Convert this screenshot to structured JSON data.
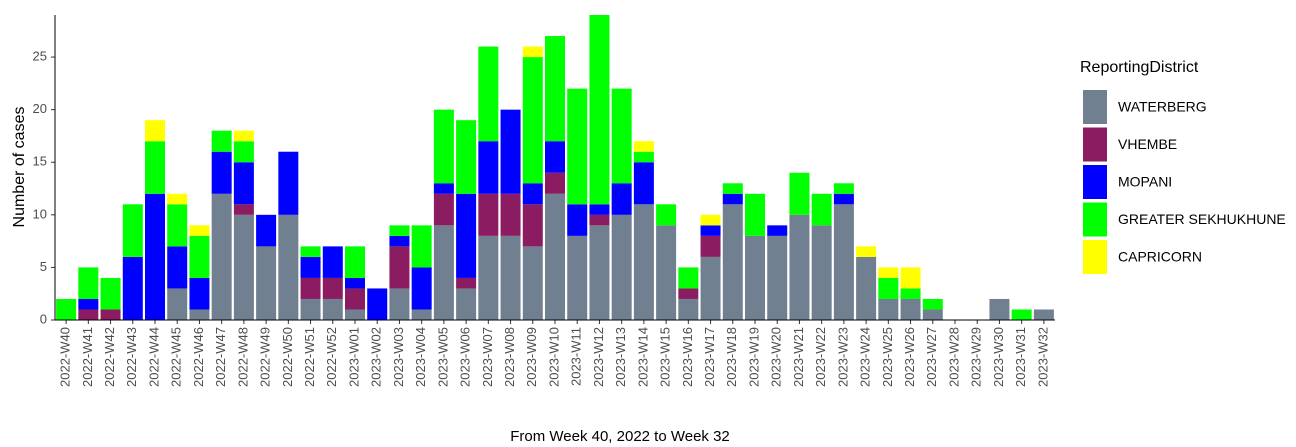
{
  "chart_data": {
    "type": "stacked_bar",
    "xlabel": "From Week 40, 2022 to Week 32",
    "ylabel": "Number of cases",
    "legend_title": "ReportingDistrict",
    "legend": "right",
    "categories": [
      "2022-W40",
      "2022-W41",
      "2022-W42",
      "2022-W43",
      "2022-W44",
      "2022-W45",
      "2022-W46",
      "2022-W47",
      "2022-W48",
      "2022-W49",
      "2022-W50",
      "2022-W51",
      "2022-W52",
      "2023-W01",
      "2023-W02",
      "2023-W03",
      "2023-W04",
      "2023-W05",
      "2023-W06",
      "2023-W07",
      "2023-W08",
      "2023-W09",
      "2023-W10",
      "2023-W11",
      "2023-W12",
      "2023-W13",
      "2023-W14",
      "2023-W15",
      "2023-W16",
      "2023-W17",
      "2023-W18",
      "2023-W19",
      "2023-W20",
      "2023-W21",
      "2023-W22",
      "2023-W23",
      "2023-W24",
      "2023-W25",
      "2023-W26",
      "2023-W27",
      "2023-W28",
      "2023-W29",
      "2023-W30",
      "2023-W31",
      "2023-W32"
    ],
    "series": [
      {
        "name": "WATERBERG",
        "color": "#708090",
        "values": [
          0,
          0,
          0,
          0,
          0,
          3,
          1,
          12,
          10,
          7,
          10,
          2,
          2,
          1,
          0,
          3,
          1,
          9,
          3,
          8,
          8,
          7,
          12,
          8,
          9,
          10,
          11,
          9,
          2,
          6,
          11,
          8,
          8,
          10,
          9,
          11,
          6,
          2,
          2,
          1,
          0,
          0,
          2,
          0,
          1
        ]
      },
      {
        "name": "VHEMBE",
        "color": "#8b1c62",
        "values": [
          0,
          1,
          1,
          0,
          0,
          0,
          0,
          0,
          1,
          0,
          0,
          2,
          2,
          2,
          0,
          4,
          0,
          3,
          1,
          4,
          4,
          4,
          2,
          0,
          1,
          0,
          0,
          0,
          1,
          2,
          0,
          0,
          0,
          0,
          0,
          0,
          0,
          0,
          0,
          0,
          0,
          0,
          0,
          0,
          0
        ]
      },
      {
        "name": "MOPANI",
        "color": "#0000ff",
        "values": [
          0,
          1,
          0,
          6,
          12,
          4,
          3,
          4,
          4,
          3,
          6,
          2,
          3,
          1,
          3,
          1,
          4,
          1,
          8,
          5,
          8,
          2,
          3,
          3,
          1,
          3,
          4,
          0,
          0,
          1,
          1,
          0,
          1,
          0,
          0,
          1,
          0,
          0,
          0,
          0,
          0,
          0,
          0,
          0,
          0
        ]
      },
      {
        "name": "GREATER SEKHUKHUNE",
        "color": "#00ff00",
        "values": [
          2,
          3,
          3,
          5,
          5,
          4,
          4,
          2,
          2,
          0,
          0,
          1,
          0,
          3,
          0,
          1,
          4,
          7,
          7,
          9,
          0,
          12,
          10,
          11,
          18,
          9,
          1,
          2,
          2,
          0,
          1,
          4,
          0,
          4,
          3,
          1,
          0,
          2,
          1,
          1,
          0,
          0,
          0,
          1,
          0
        ]
      },
      {
        "name": "CAPRICORN",
        "color": "#ffff00",
        "values": [
          0,
          0,
          0,
          0,
          2,
          1,
          1,
          0,
          1,
          0,
          0,
          0,
          0,
          0,
          0,
          0,
          0,
          0,
          0,
          0,
          0,
          1,
          0,
          0,
          0,
          0,
          1,
          0,
          0,
          1,
          0,
          0,
          0,
          0,
          0,
          0,
          1,
          1,
          2,
          0,
          0,
          0,
          0,
          0,
          0
        ]
      }
    ],
    "ylim": [
      0,
      29
    ],
    "yticks": [
      0,
      5,
      10,
      15,
      20,
      25
    ]
  }
}
